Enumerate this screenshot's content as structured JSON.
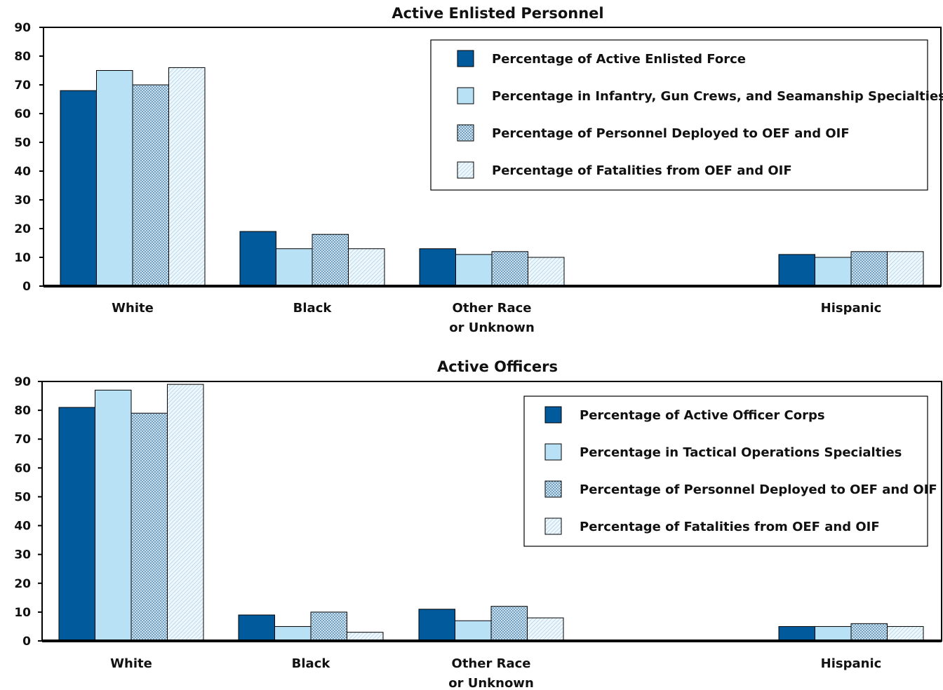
{
  "colors": {
    "dark_blue": "#005a9c",
    "light_blue": "#b9e1f5",
    "dotted_blue": "#a9cfe6",
    "hatched_light": "#e3f2fa",
    "axis": "#000000"
  },
  "chart_data": [
    {
      "type": "bar",
      "title": "Active Enlisted Personnel",
      "categories": [
        "White",
        "Black",
        "Other Race\nor Unknown",
        "",
        "Hispanic"
      ],
      "ylim": [
        0,
        90
      ],
      "yticks": [
        0,
        10,
        20,
        30,
        40,
        50,
        60,
        70,
        80,
        90
      ],
      "grid": false,
      "legend_position": "top-right",
      "series": [
        {
          "name": "Percentage of Active Enlisted Force",
          "style": "solid-dark",
          "values": [
            68,
            19,
            13,
            null,
            11
          ]
        },
        {
          "name": "Percentage in Infantry, Gun Crews, and Seamanship Specialties",
          "style": "solid-light",
          "values": [
            75,
            13,
            11,
            null,
            10
          ]
        },
        {
          "name": "Percentage of Personnel Deployed to OEF and OIF",
          "style": "dotted",
          "values": [
            70,
            18,
            12,
            null,
            12
          ]
        },
        {
          "name": "Percentage of Fatalities from OEF and OIF",
          "style": "hatched",
          "values": [
            76,
            13,
            10,
            null,
            12
          ]
        }
      ]
    },
    {
      "type": "bar",
      "title": "Active Officers",
      "categories": [
        "White",
        "Black",
        "Other Race\nor Unknown",
        "",
        "Hispanic"
      ],
      "ylim": [
        0,
        90
      ],
      "yticks": [
        0,
        10,
        20,
        30,
        40,
        50,
        60,
        70,
        80,
        90
      ],
      "grid": false,
      "legend_position": "top-right",
      "series": [
        {
          "name": "Percentage of Active Officer Corps",
          "style": "solid-dark",
          "values": [
            81,
            9,
            11,
            null,
            5
          ]
        },
        {
          "name": "Percentage in Tactical Operations Specialties",
          "style": "solid-light",
          "values": [
            87,
            5,
            7,
            null,
            5
          ]
        },
        {
          "name": "Percentage of Personnel Deployed to OEF and OIF",
          "style": "dotted",
          "values": [
            79,
            10,
            12,
            null,
            6
          ]
        },
        {
          "name": "Percentage of Fatalities from OEF and OIF",
          "style": "hatched",
          "values": [
            89,
            3,
            8,
            null,
            5
          ]
        }
      ]
    }
  ]
}
